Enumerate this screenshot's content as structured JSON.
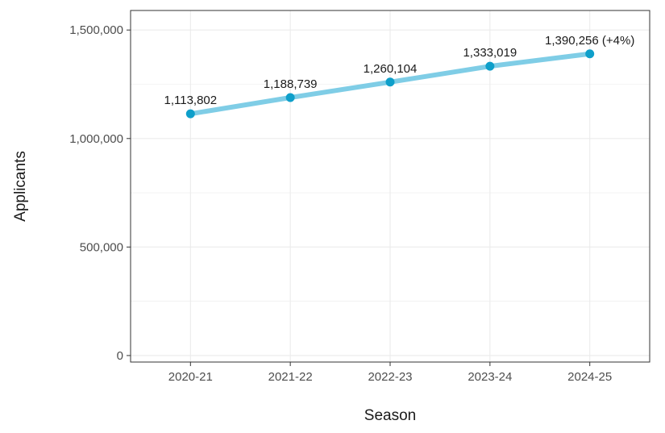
{
  "chart_data": {
    "type": "line",
    "categories": [
      "2020-21",
      "2021-22",
      "2022-23",
      "2023-24",
      "2024-25"
    ],
    "values": [
      1113802,
      1188739,
      1260104,
      1333019,
      1390256
    ],
    "data_labels": [
      "1,113,802",
      "1,188,739",
      "1,260,104",
      "1,333,019",
      "1,390,256 (+4%)"
    ],
    "xlabel": "Season",
    "ylabel": "Applicants",
    "ylim": [
      -30000,
      1590000
    ],
    "yticks": [
      0,
      500000,
      1000000,
      1500000
    ],
    "ytick_labels": [
      "0",
      "500,000",
      "1,000,000",
      "1,500,000"
    ],
    "grid": true,
    "colors": {
      "line": "#7fcde6",
      "point": "#0e9fca",
      "grid": "#ebebeb",
      "panel_border": "#333333"
    }
  }
}
